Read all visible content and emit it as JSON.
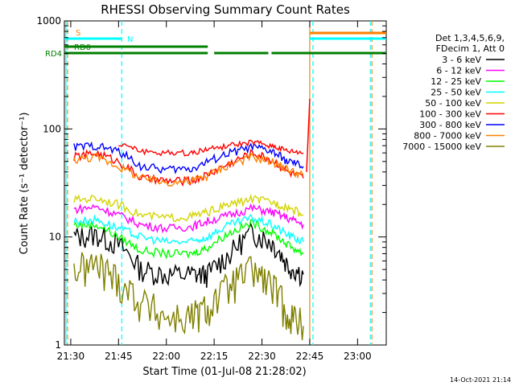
{
  "chart_data": {
    "type": "line",
    "title": "RHESSI Observing Summary Count Rates",
    "xlabel": "Start Time (01-Jul-08 21:28:02)",
    "ylabel": "Count Rate (s⁻¹ detector⁻¹)",
    "yscale": "log",
    "ylim": [
      1,
      1000
    ],
    "xlim": [
      "21:28",
      "23:09"
    ],
    "x_ticks": [
      "21:30",
      "21:45",
      "22:00",
      "22:15",
      "22:30",
      "22:45",
      "23:00"
    ],
    "y_ticks": [
      "1",
      "10",
      "100",
      "1000"
    ],
    "timestamp": "14-Oct-2021 21:14",
    "legend_header": [
      "Det 1,3,4,5,6,9,",
      "FDecim 1, Att 0"
    ],
    "flags": [
      {
        "label": "S",
        "color": "#ff8000"
      },
      {
        "label": "N",
        "color": "#00ffff"
      },
      {
        "label": "RD0",
        "color": "#008000"
      },
      {
        "label": "RD4",
        "color": "#008000"
      }
    ],
    "series": [
      {
        "name": "3 - 6 keV",
        "color": "#000000",
        "x": [
          "21:31",
          "21:38",
          "21:45",
          "21:52",
          "22:00",
          "22:08",
          "22:13",
          "22:20",
          "22:27",
          "22:33",
          "22:38",
          "22:43"
        ],
        "y": [
          10,
          10.5,
          8.5,
          5.0,
          4.5,
          4.5,
          4.5,
          7,
          11,
          9,
          5.5,
          4.5
        ]
      },
      {
        "name": "6 - 12 keV",
        "color": "#ff00ff",
        "x": [
          "21:31",
          "21:38",
          "21:45",
          "21:52",
          "22:00",
          "22:08",
          "22:13",
          "22:20",
          "22:27",
          "22:33",
          "22:38",
          "22:43"
        ],
        "y": [
          18,
          19,
          16,
          13,
          12,
          12.5,
          14,
          16,
          18.5,
          17,
          15,
          13
        ]
      },
      {
        "name": "12 - 25 keV",
        "color": "#00ff00",
        "x": [
          "21:31",
          "21:38",
          "21:45",
          "21:52",
          "22:00",
          "22:08",
          "22:13",
          "22:20",
          "22:27",
          "22:33",
          "22:38",
          "22:43"
        ],
        "y": [
          13,
          13,
          10,
          7.5,
          7,
          7,
          8,
          11,
          13.5,
          11,
          8.5,
          7
        ]
      },
      {
        "name": "25 - 50 keV",
        "color": "#00ffff",
        "x": [
          "21:31",
          "21:38",
          "21:45",
          "21:52",
          "22:00",
          "22:08",
          "22:13",
          "22:20",
          "22:27",
          "22:33",
          "22:38",
          "22:43"
        ],
        "y": [
          14,
          14.5,
          12,
          10,
          9,
          9,
          10,
          13,
          15,
          13,
          10.5,
          9
        ]
      },
      {
        "name": "50 - 100 keV",
        "color": "#d4d400",
        "x": [
          "21:31",
          "21:38",
          "21:45",
          "21:52",
          "22:00",
          "22:08",
          "22:13",
          "22:20",
          "22:27",
          "22:33",
          "22:38",
          "22:43"
        ],
        "y": [
          22,
          23,
          20,
          16,
          15,
          15.5,
          17,
          20,
          22.5,
          21,
          19,
          16
        ]
      },
      {
        "name": "100 - 300 keV",
        "color": "#ff0000",
        "x": [
          "21:31",
          "21:38",
          "21:45",
          "21:52",
          "22:00",
          "22:08",
          "22:13",
          "22:20",
          "22:27",
          "22:33",
          "22:38",
          "22:43"
        ],
        "y": [
          55,
          60,
          50,
          35,
          33,
          33,
          38,
          48,
          60,
          52,
          40,
          35
        ]
      },
      {
        "name": "300 - 800 keV",
        "color": "#0000ff",
        "x": [
          "21:31",
          "21:38",
          "21:45",
          "21:52",
          "22:00",
          "22:08",
          "22:13",
          "22:20",
          "22:27",
          "22:33",
          "22:38",
          "22:43"
        ],
        "y": [
          68,
          70,
          62,
          45,
          42,
          43,
          50,
          60,
          68,
          62,
          50,
          45
        ]
      },
      {
        "name": "800 - 7000 keV",
        "color": "#ff8000",
        "x": [
          "21:31",
          "21:38",
          "21:45",
          "21:52",
          "22:00",
          "22:08",
          "22:13",
          "22:20",
          "22:27",
          "22:33",
          "22:38",
          "22:43"
        ],
        "y": [
          52,
          55,
          45,
          35,
          32,
          33,
          37,
          47,
          55,
          50,
          42,
          37
        ]
      },
      {
        "name": "7000 - 15000 keV",
        "color": "#808000",
        "x": [
          "21:31",
          "21:38",
          "21:45",
          "21:52",
          "22:00",
          "22:08",
          "22:13",
          "22:20",
          "22:27",
          "22:33",
          "22:38",
          "22:43"
        ],
        "y": [
          5,
          5.5,
          4,
          2.5,
          1.8,
          1.8,
          2.2,
          3.5,
          5,
          3.5,
          2,
          1.5
        ]
      }
    ],
    "upper_red_trace": {
      "name": "100 - 300 keV (upper)",
      "x": [
        "21:45",
        "21:52",
        "22:00",
        "22:08",
        "22:13",
        "22:20",
        "22:27",
        "22:33",
        "22:38",
        "22:43"
      ],
      "y": [
        73,
        62,
        60,
        60,
        65,
        70,
        75,
        70,
        62,
        60
      ]
    },
    "flag_bars": {
      "S": [
        [
          "22:45",
          "23:09"
        ]
      ],
      "N": [
        [
          "21:28",
          "21:46"
        ],
        [
          "22:45",
          "23:09"
        ]
      ],
      "RD4": [
        [
          "21:28",
          "21:46"
        ],
        [
          "21:46",
          "22:13"
        ],
        [
          "22:15",
          "22:32"
        ],
        [
          "22:33",
          "23:09"
        ]
      ]
    },
    "vertical_lines": [
      {
        "t": "21:29",
        "color": "#ff8000",
        "style": "dashed"
      },
      {
        "t": "21:28.5",
        "color": "#00ffff",
        "style": "solid"
      },
      {
        "t": "21:46",
        "color": "#00ffff",
        "style": "dashed"
      },
      {
        "t": "22:45",
        "color": "#ff8000",
        "style": "solid"
      },
      {
        "t": "22:46",
        "color": "#00ffff",
        "style": "dashed"
      },
      {
        "t": "23:04",
        "color": "#00ffff",
        "style": "dashed"
      },
      {
        "t": "23:04.5",
        "color": "#ff8000",
        "style": "dashed"
      }
    ],
    "grid": false,
    "legend_position": "right"
  }
}
